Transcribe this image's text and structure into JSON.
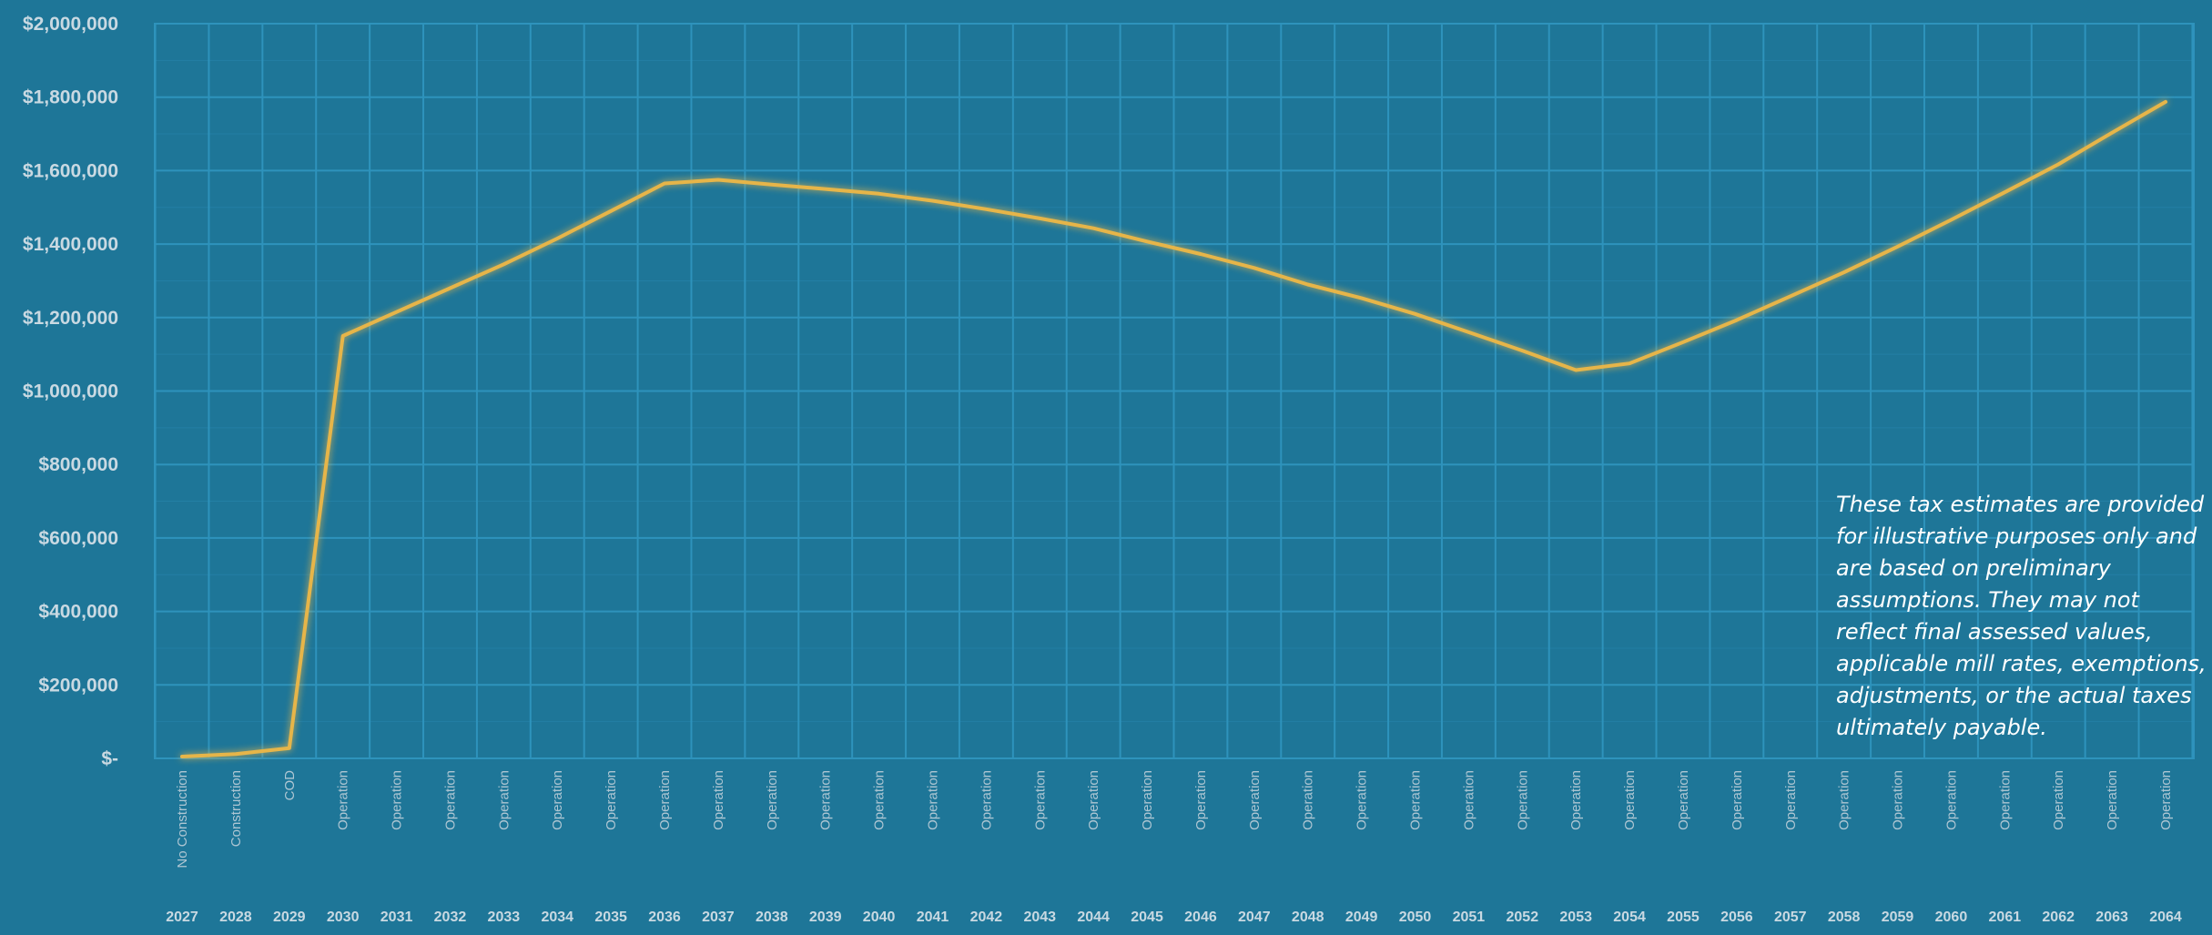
{
  "chart_data": {
    "type": "line",
    "title": "",
    "xlabel": "",
    "ylabel": "",
    "ylim": [
      0,
      2000000
    ],
    "y_tick_values": [
      0,
      200000,
      400000,
      600000,
      800000,
      1000000,
      1200000,
      1400000,
      1600000,
      1800000,
      2000000
    ],
    "y_tick_labels": [
      "$-",
      "$200,000",
      "$400,000",
      "$600,000",
      "$800,000",
      "$1,000,000",
      "$1,200,000",
      "$1,400,000",
      "$1,600,000",
      "$1,800,000",
      "$2,000,000"
    ],
    "grid": true,
    "legend": "none",
    "x": [
      "2027",
      "2028",
      "2029",
      "2030",
      "2031",
      "2032",
      "2033",
      "2034",
      "2035",
      "2036",
      "2037",
      "2038",
      "2039",
      "2040",
      "2041",
      "2042",
      "2043",
      "2044",
      "2045",
      "2046",
      "2047",
      "2048",
      "2049",
      "2050",
      "2051",
      "2052",
      "2053",
      "2054",
      "2055",
      "2056",
      "2057",
      "2058",
      "2059",
      "2060",
      "2061",
      "2062",
      "2063",
      "2064"
    ],
    "phases": [
      "No Construction",
      "Construction",
      "COD",
      "Operation",
      "Operation",
      "Operation",
      "Operation",
      "Operation",
      "Operation",
      "Operation",
      "Operation",
      "Operation",
      "Operation",
      "Operation",
      "Operation",
      "Operation",
      "Operation",
      "Operation",
      "Operation",
      "Operation",
      "Operation",
      "Operation",
      "Operation",
      "Operation",
      "Operation",
      "Operation",
      "Operation",
      "Operation",
      "Operation",
      "Operation",
      "Operation",
      "Operation",
      "Operation",
      "Operation",
      "Operation",
      "Operation",
      "Operation",
      "Operation"
    ],
    "series": [
      {
        "values": [
          5000,
          12000,
          28000,
          1150000,
          1215000,
          1280000,
          1345000,
          1415000,
          1490000,
          1565000,
          1575000,
          1562000,
          1550000,
          1537000,
          1518000,
          1495000,
          1470000,
          1443000,
          1407000,
          1373000,
          1335000,
          1290000,
          1253000,
          1210000,
          1160000,
          1110000,
          1057000,
          1075000,
          1133000,
          1193000,
          1258000,
          1323000,
          1393000,
          1466000,
          1541000,
          1617000,
          1703000,
          1787000
        ]
      }
    ],
    "colors": {
      "background": "#1e7698",
      "line": "#e6b54a",
      "grid": "#2e93bc"
    },
    "annotation": "These tax estimates are provided for illustrative purposes only and are based on preliminary assumptions. They may not reflect final assessed values, applicable mill rates, exemptions, adjustments, or the actual taxes ultimately payable."
  }
}
